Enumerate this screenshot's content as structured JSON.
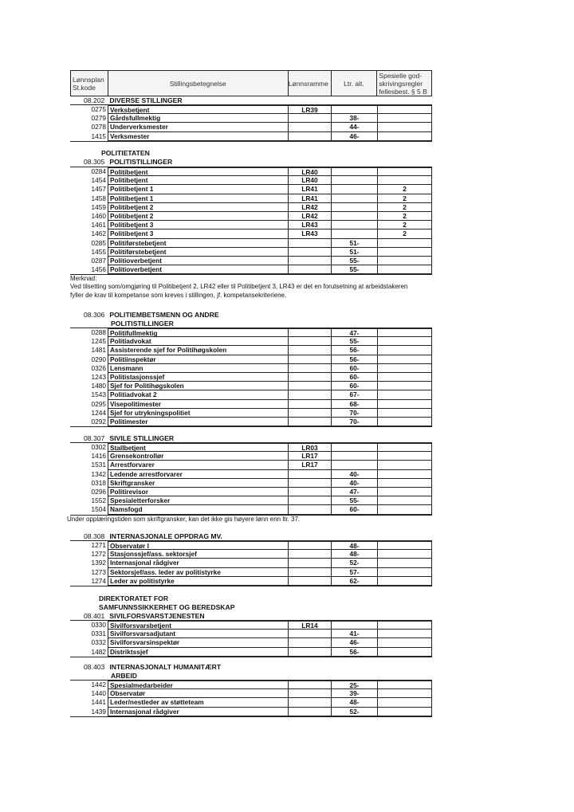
{
  "header": {
    "col1": "Lønnsplan St.kode",
    "col2": "Stillingsbetegnelse",
    "col3": "Lønnsramme",
    "col4": "Ltr. alt.",
    "col5": "Spesielle god-skrivingsregler fellesbest. § 5 B"
  },
  "sections": [
    {
      "headings": [
        "POLITIETATEN"
      ],
      "code": "",
      "title": ""
    },
    {
      "code": "08.202",
      "title": "DIVERSE STILLINGER",
      "rows": [
        [
          "0275",
          "Verksbetjent",
          "LR39",
          "",
          ""
        ],
        [
          "0279",
          "Gårdsfullmektig",
          "",
          "38-",
          ""
        ],
        [
          "0278",
          "Underverksmester",
          "",
          "44-",
          ""
        ],
        [
          "1415",
          "Verksmester",
          "",
          "46-",
          ""
        ]
      ]
    },
    {
      "code": "08.305",
      "title": "POLITISTILLINGER",
      "rows": [
        [
          "0284",
          "Politibetjent",
          "LR40",
          "",
          ""
        ],
        [
          "1454",
          "Politibetjent",
          "LR40",
          "",
          ""
        ],
        [
          "1457",
          "Politibetjent 1",
          "LR41",
          "",
          "2"
        ],
        [
          "1458",
          "Politibetjent 1",
          "LR41",
          "",
          "2"
        ],
        [
          "1459",
          "Politibetjent 2",
          "LR42",
          "",
          "2"
        ],
        [
          "1460",
          "Politibetjent 2",
          "LR42",
          "",
          "2"
        ],
        [
          "1461",
          "Politibetjent 3",
          "LR43",
          "",
          "2"
        ],
        [
          "1462",
          "Politibetjent 3",
          "LR43",
          "",
          "2"
        ],
        [
          "0285",
          "Politiførstebetjent",
          "",
          "51-",
          ""
        ],
        [
          "1455",
          "Politiførstebetjent",
          "",
          "51-",
          ""
        ],
        [
          "0287",
          "Politioverbetjent",
          "",
          "55-",
          ""
        ],
        [
          "1456",
          "Politioverbetjent",
          "",
          "55-",
          ""
        ]
      ]
    },
    {
      "code": "08.306",
      "title": "POLITIEMBETSMENN OG ANDRE",
      "title2": "POLITISTILLINGER",
      "rows": [
        [
          "0288",
          "Politifullmektig",
          "",
          "47-",
          ""
        ],
        [
          "1245",
          "Politiadvokat",
          "",
          "55-",
          ""
        ],
        [
          "1481",
          "Assisterende sjef for Politihøgskolen",
          "",
          "56-",
          ""
        ],
        [
          "0290",
          "Politiinspektør",
          "",
          "56-",
          ""
        ],
        [
          "0326",
          "Lensmann",
          "",
          "60-",
          ""
        ],
        [
          "1243",
          "Politistasjonssjef",
          "",
          "60-",
          ""
        ],
        [
          "1480",
          "Sjef for Politihøgskolen",
          "",
          "60-",
          ""
        ],
        [
          "1543",
          "Politiadvokat 2",
          "",
          "67-",
          ""
        ],
        [
          "0295",
          "Visepolitimester",
          "",
          "68-",
          ""
        ],
        [
          "1244",
          "Sjef for utrykningspolitiet",
          "",
          "70-",
          ""
        ],
        [
          "0292",
          "Politimester",
          "",
          "70-",
          ""
        ]
      ]
    },
    {
      "code": "08.307",
      "title": "SIVILE STILLINGER",
      "rows": [
        [
          "0302",
          "Stallbetjent",
          "LR03",
          "",
          ""
        ],
        [
          "1416",
          "Grensekontrollør",
          "LR17",
          "",
          ""
        ],
        [
          "1531",
          "Arrestforvarer",
          "LR17",
          "",
          ""
        ],
        [
          "1342",
          "Ledende arrestforvarer",
          "",
          "40-",
          ""
        ],
        [
          "0318",
          "Skriftgransker",
          "",
          "40-",
          ""
        ],
        [
          "0296",
          "Politirevisor",
          "",
          "47-",
          ""
        ],
        [
          "1552",
          "Spesialetterforsker",
          "",
          "55-",
          ""
        ],
        [
          "1504",
          "Namsfogd",
          "",
          "60-",
          ""
        ]
      ]
    },
    {
      "code": "08.308",
      "title": "INTERNASJONALE OPPDRAG MV.",
      "rows": [
        [
          "1271",
          "Observatør I",
          "",
          "48-",
          ""
        ],
        [
          "1272",
          "Stasjonssjef/ass. sektorsjef",
          "",
          "48-",
          ""
        ],
        [
          "1392",
          "Internasjonal rådgiver",
          "",
          "52-",
          ""
        ],
        [
          "1273",
          "Sektorsjef/ass. leder av politistyrke",
          "",
          "57-",
          ""
        ],
        [
          "1274",
          "Leder av politistyrke",
          "",
          "62-",
          ""
        ]
      ]
    },
    {
      "code": "08.401",
      "title": "SIVILFORSVARSTJENESTEN",
      "rows": [
        [
          "0330",
          "Sivilforsvarsbetjent",
          "LR14",
          "",
          ""
        ],
        [
          "0331",
          "Sivilforsvarsadjutant",
          "",
          "41-",
          ""
        ],
        [
          "0332",
          "Sivilforsvarsinspektør",
          "",
          "46-",
          ""
        ],
        [
          "1482",
          "Distriktssjef",
          "",
          "56-",
          ""
        ]
      ]
    },
    {
      "code": "08.403",
      "title": "INTERNASJONALT HUMANITÆRT",
      "title2": "ARBEID",
      "rows": [
        [
          "1442",
          "Spesialmedarbeider",
          "",
          "25-",
          ""
        ],
        [
          "1440",
          "Observatør",
          "",
          "39-",
          ""
        ],
        [
          "1441",
          "Leder/nestleder av støtteteam",
          "",
          "48-",
          ""
        ],
        [
          "1439",
          "Internasjonal rådgiver",
          "",
          "52-",
          ""
        ]
      ]
    }
  ],
  "headings": {
    "politietaten": "POLITIETATEN",
    "dsb1": "DIREKTORATET FOR",
    "dsb2": "SAMFUNNSSIKKERHET OG BEREDSKAP"
  },
  "notes": {
    "merknad_label": "Merknad:",
    "merknad_1": "Ved tilsetting som/omgjøring til Politibetjent 2, LR42 eller til Politibetjent 3, LR43 er det en forutsetning at arbeidstakeren",
    "merknad_2": "fyller de krav til kompetanse som kreves i stillingen, jf. kompetansekriteriene.",
    "skrift": "Under opplæringstiden som skriftgransker, kan det ikke gis høyere lønn enn ltr. 37."
  }
}
